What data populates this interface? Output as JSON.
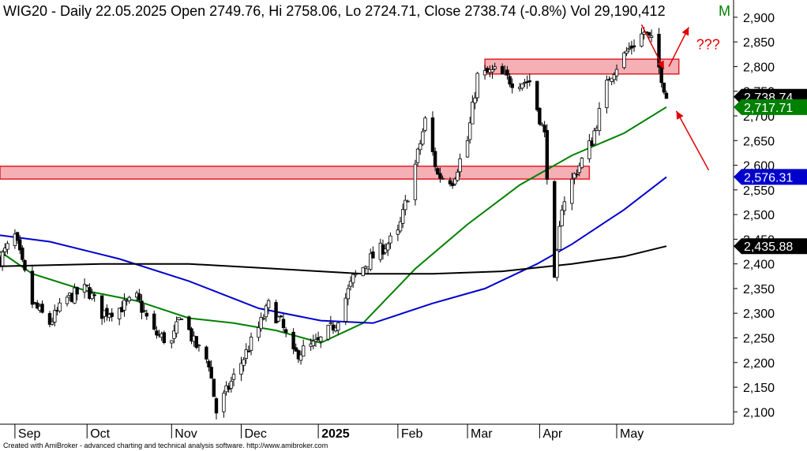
{
  "chart_data": {
    "type": "candlestick",
    "title": {
      "symbol": "WIG20",
      "text": "WIG20 - Daily 22.05.2025 Open 2749.76, Hi 2758.06, Lo 2724.71, Close 2738.74 (-0.8%) Vol 29,190,412",
      "suffix": "M"
    },
    "y_axis": {
      "min": 2075,
      "max": 2935,
      "ticks": [
        2100,
        2150,
        2200,
        2250,
        2300,
        2350,
        2400,
        2450,
        2500,
        2550,
        2600,
        2650,
        2700,
        2750,
        2800,
        2850,
        2900
      ],
      "tick_labels": [
        "2,100",
        "2,150",
        "2,200",
        "2,250",
        "2,300",
        "2,350",
        "2,400",
        "2,450",
        "2,500",
        "2,550",
        "2,600",
        "2,650",
        "2,700",
        "2,750",
        "2,800",
        "2,850",
        "2,900"
      ],
      "side": "right"
    },
    "x_axis": {
      "start": "2024-08-27",
      "end": "2025-06-18",
      "labels": [
        {
          "date": "2024-09-02",
          "text": "Sep",
          "bold": false
        },
        {
          "date": "2024-10-01",
          "text": "Oct",
          "bold": false
        },
        {
          "date": "2024-11-04",
          "text": "Nov",
          "bold": false
        },
        {
          "date": "2024-12-02",
          "text": "Dec",
          "bold": false
        },
        {
          "date": "2025-01-02",
          "text": "2025",
          "bold": true
        },
        {
          "date": "2025-02-03",
          "text": "Feb",
          "bold": false
        },
        {
          "date": "2025-03-03",
          "text": "Mar",
          "bold": false
        },
        {
          "date": "2025-04-01",
          "text": "Apr",
          "bold": false
        },
        {
          "date": "2025-05-02",
          "text": "May",
          "bold": false
        }
      ]
    },
    "candle_color": "#000000",
    "price_path": [
      [
        "2024-08-27",
        2410
      ],
      [
        "2024-09-02",
        2455
      ],
      [
        "2024-09-09",
        2320
      ],
      [
        "2024-09-16",
        2280
      ],
      [
        "2024-09-23",
        2330
      ],
      [
        "2024-10-01",
        2350
      ],
      [
        "2024-10-07",
        2300
      ],
      [
        "2024-10-14",
        2310
      ],
      [
        "2024-10-21",
        2330
      ],
      [
        "2024-10-28",
        2260
      ],
      [
        "2024-11-04",
        2240
      ],
      [
        "2024-11-08",
        2300
      ],
      [
        "2024-11-13",
        2240
      ],
      [
        "2024-11-19",
        2200
      ],
      [
        "2024-11-22",
        2100
      ],
      [
        "2024-11-27",
        2150
      ],
      [
        "2024-12-02",
        2200
      ],
      [
        "2024-12-09",
        2270
      ],
      [
        "2024-12-13",
        2315
      ],
      [
        "2024-12-18",
        2280
      ],
      [
        "2024-12-23",
        2215
      ],
      [
        "2025-01-02",
        2240
      ],
      [
        "2025-01-09",
        2280
      ],
      [
        "2025-01-16",
        2370
      ],
      [
        "2025-01-23",
        2410
      ],
      [
        "2025-02-03",
        2460
      ],
      [
        "2025-02-10",
        2600
      ],
      [
        "2025-02-14",
        2690
      ],
      [
        "2025-02-19",
        2580
      ],
      [
        "2025-02-25",
        2570
      ],
      [
        "2025-03-03",
        2650
      ],
      [
        "2025-03-07",
        2780
      ],
      [
        "2025-03-14",
        2790
      ],
      [
        "2025-03-21",
        2770
      ],
      [
        "2025-03-28",
        2770
      ],
      [
        "2025-04-03",
        2660
      ],
      [
        "2025-04-07",
        2360
      ],
      [
        "2025-04-10",
        2520
      ],
      [
        "2025-04-15",
        2580
      ],
      [
        "2025-04-22",
        2650
      ],
      [
        "2025-04-29",
        2780
      ],
      [
        "2025-05-06",
        2830
      ],
      [
        "2025-05-13",
        2870
      ],
      [
        "2025-05-16",
        2850
      ],
      [
        "2025-05-20",
        2780
      ],
      [
        "2025-05-22",
        2739
      ]
    ],
    "moving_averages": [
      {
        "color": "#008000",
        "last_value": 2717.71,
        "last_label": "2,717.71",
        "points": [
          [
            "2024-08-27",
            2425
          ],
          [
            "2024-09-09",
            2380
          ],
          [
            "2024-10-01",
            2345
          ],
          [
            "2024-10-21",
            2325
          ],
          [
            "2024-11-11",
            2290
          ],
          [
            "2024-11-29",
            2280
          ],
          [
            "2024-12-16",
            2265
          ],
          [
            "2025-01-03",
            2240
          ],
          [
            "2025-01-20",
            2280
          ],
          [
            "2025-02-10",
            2390
          ],
          [
            "2025-03-03",
            2480
          ],
          [
            "2025-03-24",
            2560
          ],
          [
            "2025-04-14",
            2620
          ],
          [
            "2025-05-05",
            2665
          ],
          [
            "2025-05-22",
            2718
          ]
        ]
      },
      {
        "color": "#0000cc",
        "last_value": 2576.31,
        "last_label": "2,576.31",
        "points": [
          [
            "2024-08-27",
            2458
          ],
          [
            "2024-09-16",
            2445
          ],
          [
            "2024-10-14",
            2410
          ],
          [
            "2024-11-11",
            2365
          ],
          [
            "2024-12-09",
            2310
          ],
          [
            "2025-01-03",
            2285
          ],
          [
            "2025-01-24",
            2280
          ],
          [
            "2025-02-17",
            2320
          ],
          [
            "2025-03-10",
            2350
          ],
          [
            "2025-03-31",
            2400
          ],
          [
            "2025-04-14",
            2440
          ],
          [
            "2025-05-05",
            2510
          ],
          [
            "2025-05-22",
            2576
          ]
        ]
      },
      {
        "color": "#000000",
        "last_value": 2435.88,
        "last_label": "2,435.88",
        "points": [
          [
            "2024-08-27",
            2395
          ],
          [
            "2024-10-07",
            2400
          ],
          [
            "2024-11-11",
            2400
          ],
          [
            "2024-12-16",
            2390
          ],
          [
            "2025-01-20",
            2380
          ],
          [
            "2025-02-17",
            2380
          ],
          [
            "2025-03-17",
            2385
          ],
          [
            "2025-04-14",
            2400
          ],
          [
            "2025-05-05",
            2415
          ],
          [
            "2025-05-22",
            2436
          ]
        ]
      }
    ],
    "last_price": {
      "value": 2738.74,
      "label": "2,738.74",
      "bg": "#000000"
    },
    "zones": [
      {
        "x_from": "2025-03-10",
        "x_to": "2025-05-27",
        "y_from": 2785,
        "y_to": 2815,
        "fill": "#f4b0b4",
        "stroke": "#e0202a"
      },
      {
        "x_from": "2024-08-27",
        "x_to": "2025-04-21",
        "y_from": 2572,
        "y_to": 2598,
        "fill": "#f4b0b4",
        "stroke": "#e0202a"
      }
    ],
    "annotations": [
      {
        "type": "arrow",
        "from": [
          "2025-05-12",
          2885
        ],
        "to": [
          "2025-05-21",
          2795
        ],
        "color": "#e00000"
      },
      {
        "type": "arrow",
        "from": [
          "2025-05-23",
          2800
        ],
        "to": [
          "2025-05-31",
          2880
        ],
        "color": "#e00000"
      },
      {
        "type": "arrow",
        "from": [
          "2025-06-08",
          2590
        ],
        "to": [
          "2025-05-26",
          2710
        ],
        "color": "#e00000"
      },
      {
        "type": "text",
        "text": "???",
        "at": [
          "2025-06-03",
          2835
        ],
        "color": "#e00000"
      }
    ],
    "grid": false,
    "legend": "none"
  },
  "footer": {
    "credit": "Created with AmiBroker - advanced charting and technical analysis software. http://www.amibroker.com"
  }
}
